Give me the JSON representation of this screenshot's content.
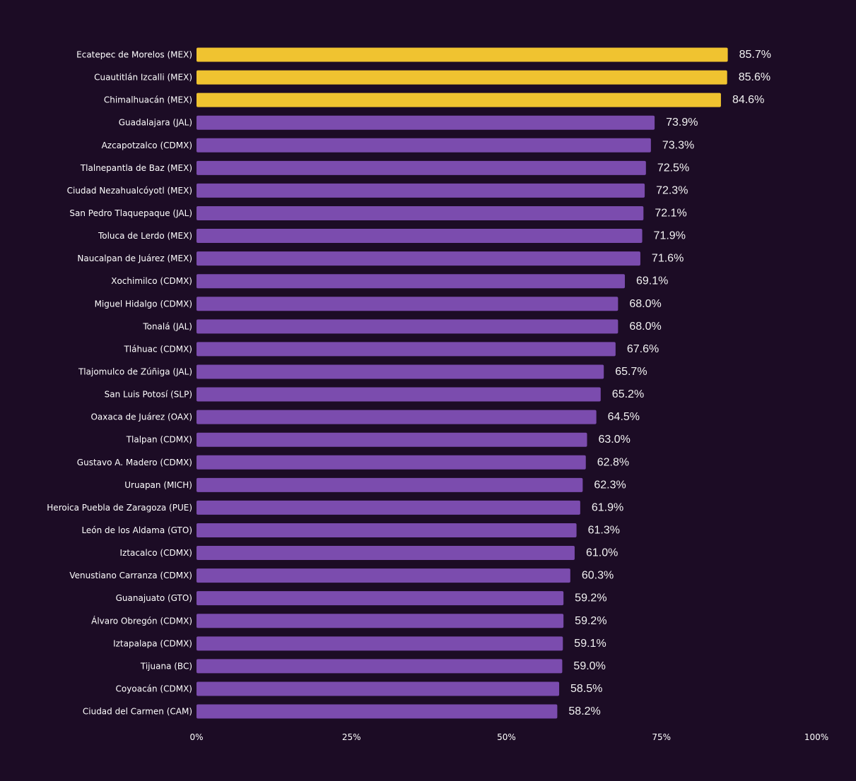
{
  "chart_data": {
    "type": "bar",
    "orientation": "horizontal",
    "title": "",
    "xlabel": "",
    "ylabel": "",
    "xlim": [
      0,
      100
    ],
    "x_ticks": [
      0,
      25,
      50,
      75,
      100
    ],
    "x_tick_labels": [
      "0%",
      "25%",
      "50%",
      "75%",
      "100%"
    ],
    "grid": false,
    "value_label_format": "0.0%",
    "categories": [
      "Ecatepec de Morelos (MEX)",
      "Cuautitlán Izcalli (MEX)",
      "Chimalhuacán (MEX)",
      "Guadalajara (JAL)",
      "Azcapotzalco (CDMX)",
      "Tlalnepantla de Baz (MEX)",
      "Ciudad Nezahualcóyotl (MEX)",
      "San Pedro Tlaquepaque (JAL)",
      "Toluca de Lerdo (MEX)",
      "Naucalpan de Juárez (MEX)",
      "Xochimilco (CDMX)",
      "Miguel Hidalgo (CDMX)",
      "Tonalá (JAL)",
      "Tláhuac (CDMX)",
      "Tlajomulco de Zúñiga (JAL)",
      "San Luis Potosí (SLP)",
      "Oaxaca de Juárez (OAX)",
      "Tlalpan (CDMX)",
      "Gustavo A. Madero (CDMX)",
      "Uruapan (MICH)",
      "Heroica Puebla de Zaragoza (PUE)",
      "León de los Aldama (GTO)",
      "Iztacalco (CDMX)",
      "Venustiano Carranza (CDMX)",
      "Guanajuato (GTO)",
      "Álvaro Obregón (CDMX)",
      "Iztapalapa (CDMX)",
      "Tijuana (BC)",
      "Coyoacán (CDMX)",
      "Ciudad del Carmen (CAM)"
    ],
    "values": [
      85.7,
      85.6,
      84.6,
      73.9,
      73.3,
      72.5,
      72.3,
      72.1,
      71.9,
      71.6,
      69.1,
      68.0,
      68.0,
      67.6,
      65.7,
      65.2,
      64.5,
      63.0,
      62.8,
      62.3,
      61.9,
      61.3,
      61.0,
      60.3,
      59.2,
      59.2,
      59.1,
      59.0,
      58.5,
      58.2
    ],
    "value_labels": [
      "85.7%",
      "85.6%",
      "84.6%",
      "73.9%",
      "73.3%",
      "72.5%",
      "72.3%",
      "72.1%",
      "71.9%",
      "71.6%",
      "69.1%",
      "68.0%",
      "68.0%",
      "67.6%",
      "65.7%",
      "65.2%",
      "64.5%",
      "63.0%",
      "62.8%",
      "62.3%",
      "61.9%",
      "61.3%",
      "61.0%",
      "60.3%",
      "59.2%",
      "59.2%",
      "59.1%",
      "59.0%",
      "58.5%",
      "58.2%"
    ],
    "highlight_count": 3,
    "colors": {
      "background": "#1c0c25",
      "highlight": "#f0c330",
      "bar": "#7b4cae",
      "text": "#ffffff",
      "value_text": "#f2f2f2"
    }
  }
}
